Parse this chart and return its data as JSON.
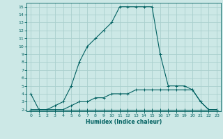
{
  "xlabel": "Humidex (Indice chaleur)",
  "background_color": "#cce8e6",
  "grid_color": "#aad0ce",
  "line_color": "#006060",
  "xlim": [
    -0.5,
    23.5
  ],
  "ylim": [
    1.8,
    15.5
  ],
  "xticks": [
    0,
    1,
    2,
    3,
    4,
    5,
    6,
    7,
    8,
    9,
    10,
    11,
    12,
    13,
    14,
    15,
    16,
    17,
    18,
    19,
    20,
    21,
    22,
    23
  ],
  "yticks": [
    2,
    3,
    4,
    5,
    6,
    7,
    8,
    9,
    10,
    11,
    12,
    13,
    14,
    15
  ],
  "line1_x": [
    0,
    1,
    2,
    3,
    4,
    5,
    6,
    7,
    8,
    9,
    10,
    11,
    12,
    13,
    14,
    15,
    16,
    17,
    18,
    19,
    20,
    21,
    22,
    23
  ],
  "line1_y": [
    4,
    2,
    2,
    2.5,
    3,
    5,
    8,
    10,
    11,
    12,
    13,
    15,
    15,
    15,
    15,
    15,
    9,
    5,
    5,
    5,
    4.5,
    3,
    2,
    2
  ],
  "line2_x": [
    0,
    1,
    2,
    3,
    4,
    5,
    6,
    7,
    8,
    9,
    10,
    11,
    12,
    13,
    14,
    15,
    16,
    17,
    18,
    19,
    20,
    21,
    22,
    23
  ],
  "line2_y": [
    2,
    2,
    2,
    2,
    2,
    2,
    2,
    2,
    2,
    2,
    2,
    2,
    2,
    2,
    2,
    2,
    2,
    2,
    2,
    2,
    2,
    2,
    2,
    2
  ],
  "line3_x": [
    0,
    1,
    2,
    3,
    4,
    5,
    6,
    7,
    8,
    9,
    10,
    11,
    12,
    13,
    14,
    15,
    16,
    17,
    18,
    19,
    20,
    21,
    22,
    23
  ],
  "line3_y": [
    2,
    2,
    2,
    2,
    2,
    2.5,
    3,
    3,
    3.5,
    3.5,
    4,
    4,
    4,
    4.5,
    4.5,
    4.5,
    4.5,
    4.5,
    4.5,
    4.5,
    4.5,
    3,
    2,
    2
  ]
}
